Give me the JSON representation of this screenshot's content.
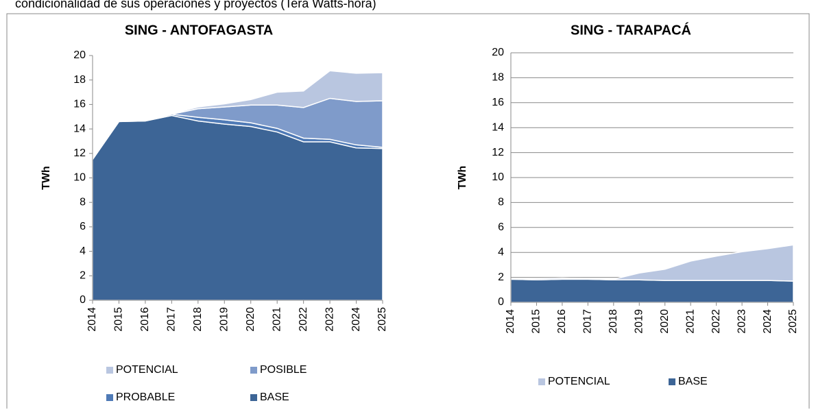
{
  "header": "condicionalidad de sus operaciones y proyectos (Tera Watts-hora)",
  "chart_data": [
    {
      "type": "area",
      "stacked": true,
      "title": "SING - ANTOFAGASTA",
      "y_label": "TWh",
      "x": [
        2014,
        2015,
        2016,
        2017,
        2018,
        2019,
        2020,
        2021,
        2022,
        2023,
        2024,
        2025
      ],
      "ylim": [
        0,
        20
      ],
      "yticks": [
        0,
        2,
        4,
        6,
        8,
        10,
        12,
        14,
        16,
        18,
        20
      ],
      "grid": false,
      "series": [
        {
          "name": "BASE",
          "color": "#3d6596",
          "values": [
            11.5,
            14.6,
            14.65,
            15.1,
            14.65,
            14.4,
            14.2,
            13.75,
            12.95,
            12.95,
            12.45,
            12.4
          ]
        },
        {
          "name": "PROBABLE",
          "color": "#4f7ab6",
          "values": [
            0,
            0.05,
            0.05,
            0.1,
            0.3,
            0.35,
            0.3,
            0.3,
            0.3,
            0.2,
            0.25,
            0.1
          ]
        },
        {
          "name": "POSIBLE",
          "color": "#7f9bca",
          "values": [
            0,
            0,
            0,
            0,
            0.7,
            1.05,
            1.45,
            1.9,
            2.5,
            3.35,
            3.55,
            3.8
          ]
        },
        {
          "name": "POTENCIAL",
          "color": "#b9c6e0",
          "values": [
            0.1,
            0.05,
            0.05,
            0.05,
            0.15,
            0.25,
            0.45,
            1.05,
            1.35,
            2.25,
            2.3,
            2.3
          ]
        }
      ]
    },
    {
      "type": "area",
      "stacked": true,
      "title": "SING - TARAPACÁ",
      "y_label": "TWh",
      "x": [
        2014,
        2015,
        2016,
        2017,
        2018,
        2019,
        2020,
        2021,
        2022,
        2023,
        2024,
        2025
      ],
      "ylim": [
        0,
        20
      ],
      "yticks": [
        0,
        2,
        4,
        6,
        8,
        10,
        12,
        14,
        16,
        18,
        20
      ],
      "grid": true,
      "series": [
        {
          "name": "BASE",
          "color": "#3d6596",
          "values": [
            1.85,
            1.8,
            1.85,
            1.85,
            1.8,
            1.8,
            1.75,
            1.75,
            1.75,
            1.75,
            1.75,
            1.7
          ]
        },
        {
          "name": "POTENCIAL",
          "color": "#b9c6e0",
          "values": [
            0.05,
            0.1,
            0.1,
            0.05,
            0.05,
            0.55,
            0.9,
            1.55,
            1.95,
            2.3,
            2.55,
            2.9
          ]
        }
      ]
    }
  ]
}
